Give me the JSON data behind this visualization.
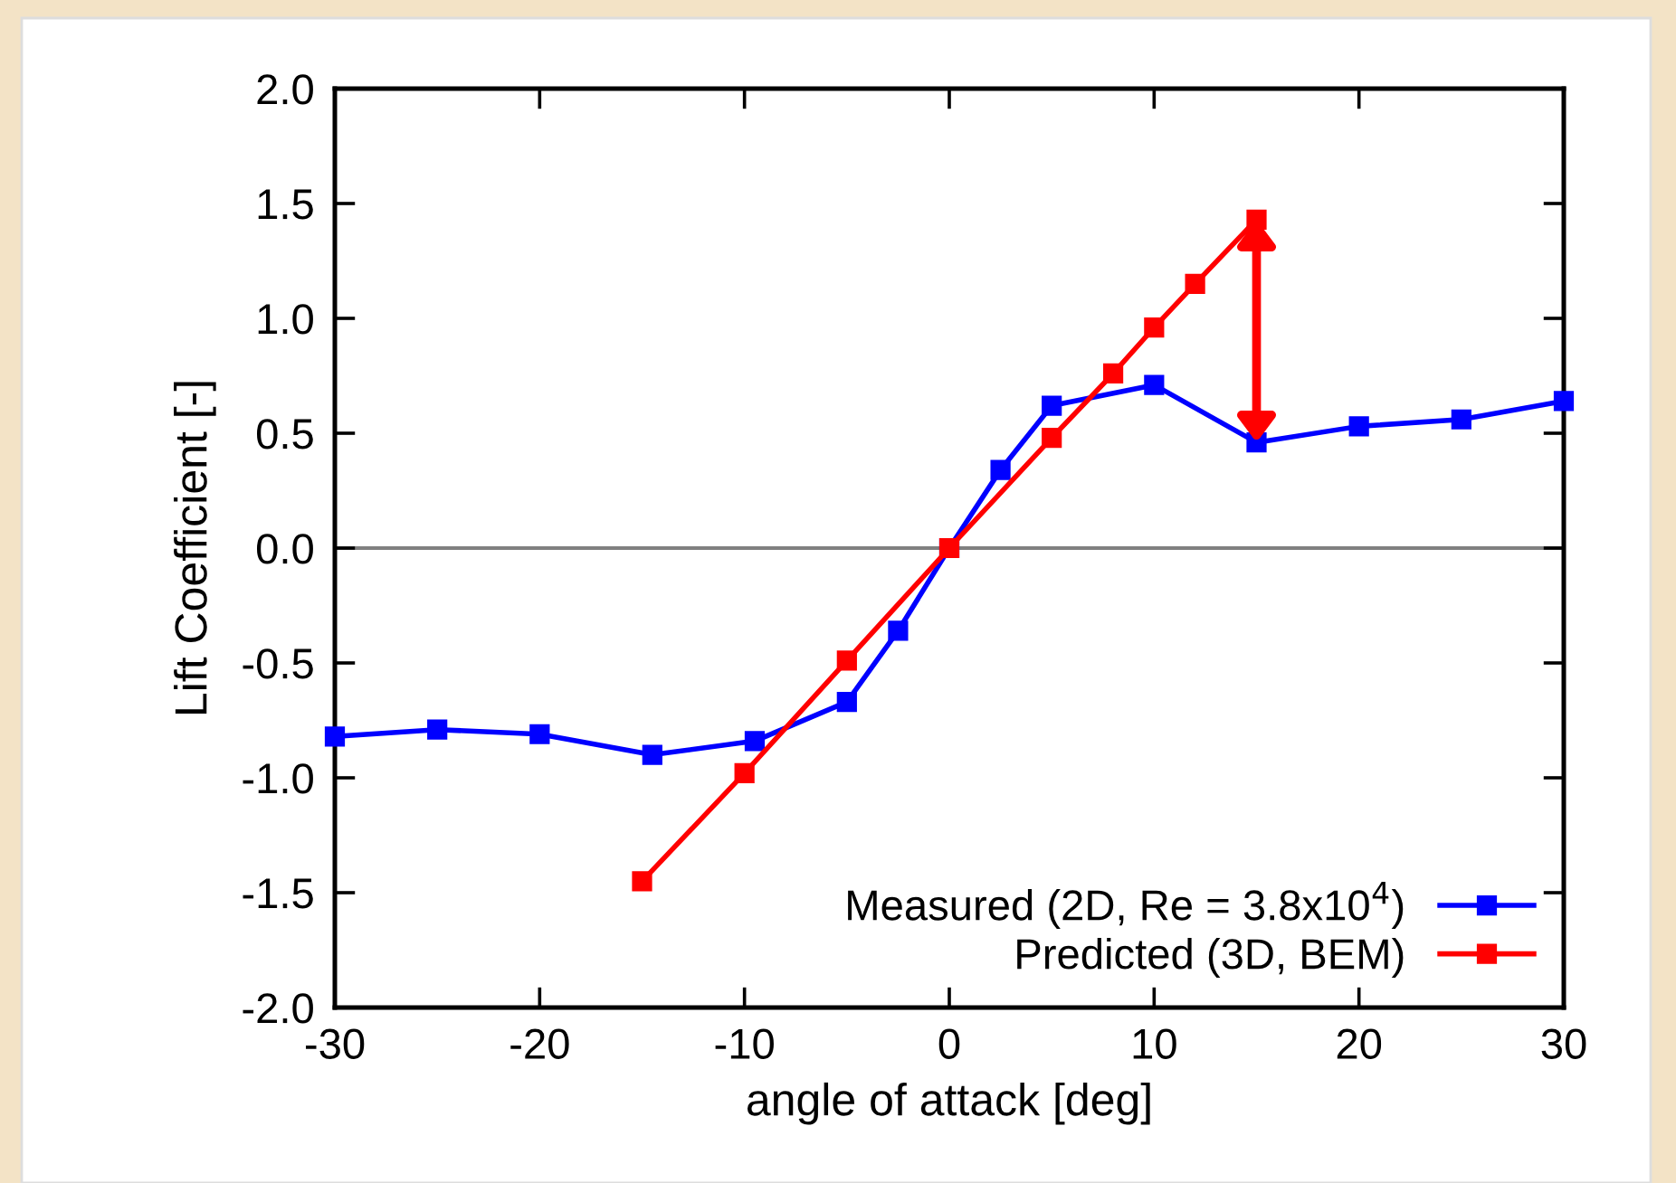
{
  "chart_data": {
    "type": "line",
    "xlabel": "angle of attack [deg]",
    "ylabel": "Lift Coefficient [-]",
    "series": [
      {
        "name": "Measured (2D, Re = 3.8x10$^{4}$)",
        "color": "#0000ff",
        "x": [
          -30,
          -25,
          -20,
          -14.5,
          -9.5,
          -5,
          -2.5,
          0,
          2.5,
          5,
          10,
          15,
          20,
          25,
          30
        ],
        "values": [
          -0.82,
          -0.79,
          -0.81,
          -0.9,
          -0.84,
          -0.67,
          -0.36,
          0,
          0.34,
          0.62,
          0.71,
          0.46,
          0.53,
          0.56,
          0.64
        ]
      },
      {
        "name": "Predicted (3D, BEM)",
        "color": "#ff0000",
        "x": [
          -15,
          -10,
          -5,
          0,
          5,
          8,
          10,
          12,
          15
        ],
        "values": [
          -1.45,
          -0.98,
          -0.49,
          0,
          0.48,
          0.76,
          0.96,
          1.15,
          1.43
        ]
      }
    ],
    "xlim": [
      -30,
      30
    ],
    "xticks": [
      -30,
      -20,
      -10,
      0,
      10,
      20,
      30
    ],
    "ylim": [
      -2.0,
      2.0
    ],
    "yticks": [
      {
        "value": -2,
        "label": "-2.0"
      },
      {
        "value": -1.5,
        "label": "-1.5"
      },
      {
        "value": -1,
        "label": "-1.0"
      },
      {
        "value": -0.5,
        "label": "-0.5"
      },
      {
        "value": 0,
        "label": "0.0"
      },
      {
        "value": 0.5,
        "label": "0.5"
      },
      {
        "value": 1,
        "label": "1.0"
      },
      {
        "value": 1.5,
        "label": "1.5"
      },
      {
        "value": 2,
        "label": "2.0"
      }
    ],
    "ref_lines": [
      {
        "axis": "y",
        "value": 0,
        "color": "#808080"
      }
    ],
    "marker": "square",
    "line_style": "solid",
    "grid": false,
    "legend": "bottom right"
  }
}
